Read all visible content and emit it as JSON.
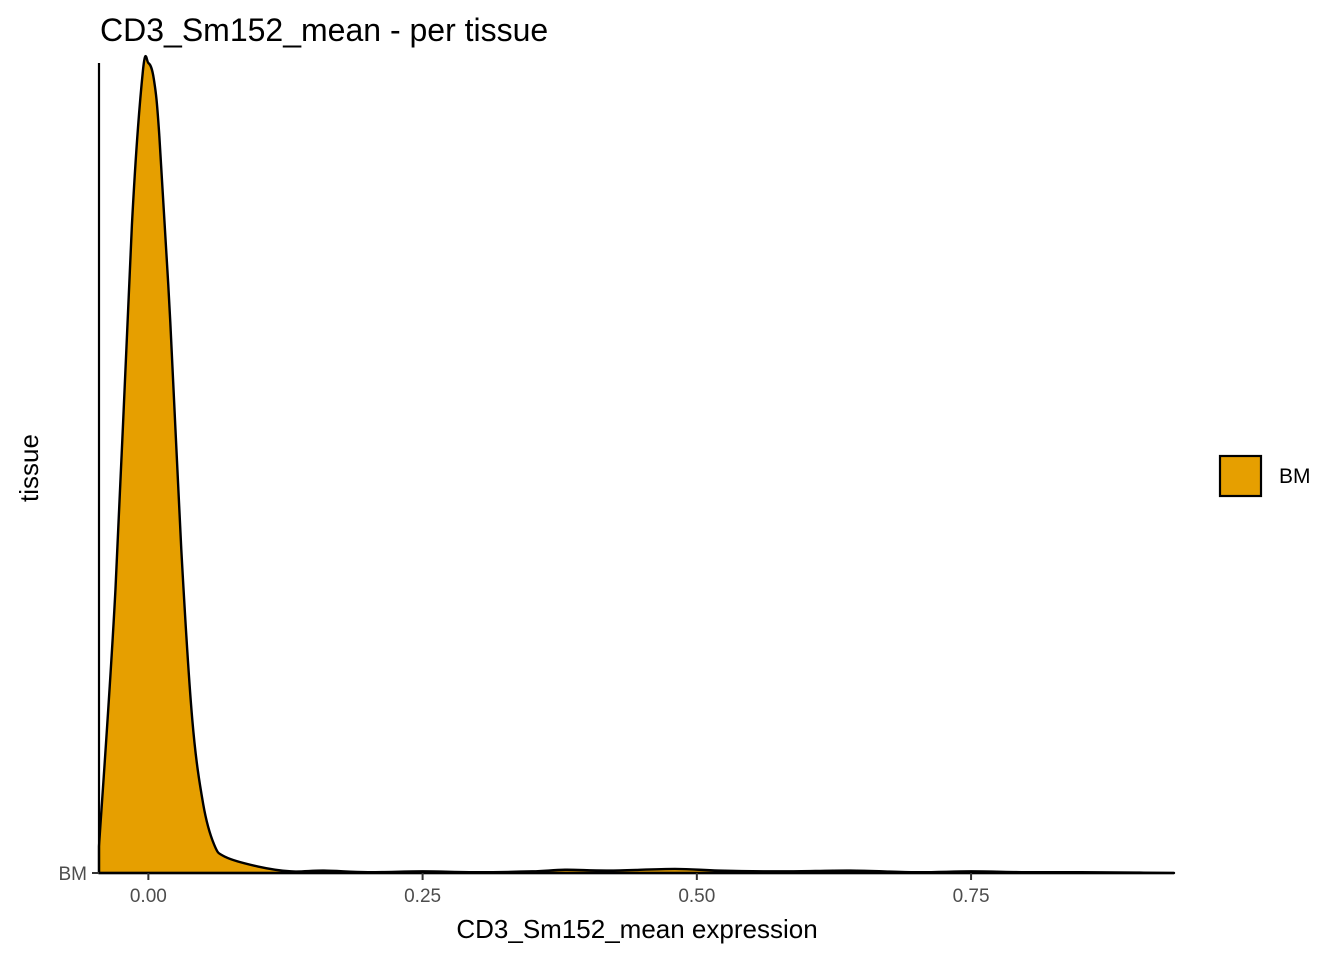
{
  "chart_data": {
    "type": "area",
    "subtype": "ridgeline-density",
    "title": "CD3_Sm152_mean - per tissue",
    "xlabel": "CD3_Sm152_mean expression",
    "ylabel": "tissue",
    "xlim": [
      -0.045,
      0.935
    ],
    "x_ticks": [
      0.0,
      0.25,
      0.5,
      0.75
    ],
    "x_tick_labels": [
      "0.00",
      "0.25",
      "0.50",
      "0.75"
    ],
    "y_categories": [
      "BM"
    ],
    "grid": false,
    "legend": {
      "position": "right",
      "entries": [
        "BM"
      ]
    },
    "series": [
      {
        "name": "BM",
        "color": "#E69F00",
        "outline": "#000000",
        "x": [
          -0.045,
          -0.03,
          -0.015,
          -0.005,
          0.0,
          0.005,
          0.01,
          0.02,
          0.03,
          0.04,
          0.05,
          0.06,
          0.07,
          0.1,
          0.13,
          0.16,
          0.2,
          0.25,
          0.3,
          0.35,
          0.38,
          0.42,
          0.48,
          0.52,
          0.58,
          0.64,
          0.7,
          0.75,
          0.8,
          0.85,
          0.9,
          0.935
        ],
        "y": [
          0.033,
          0.35,
          0.8,
          0.99,
          1.0,
          0.98,
          0.91,
          0.68,
          0.4,
          0.19,
          0.085,
          0.035,
          0.02,
          0.008,
          0.002,
          0.003,
          0.001,
          0.002,
          0.001,
          0.002,
          0.004,
          0.003,
          0.005,
          0.003,
          0.002,
          0.003,
          0.001,
          0.002,
          0.001,
          0.001,
          0.0005,
          0.0
        ]
      }
    ]
  }
}
